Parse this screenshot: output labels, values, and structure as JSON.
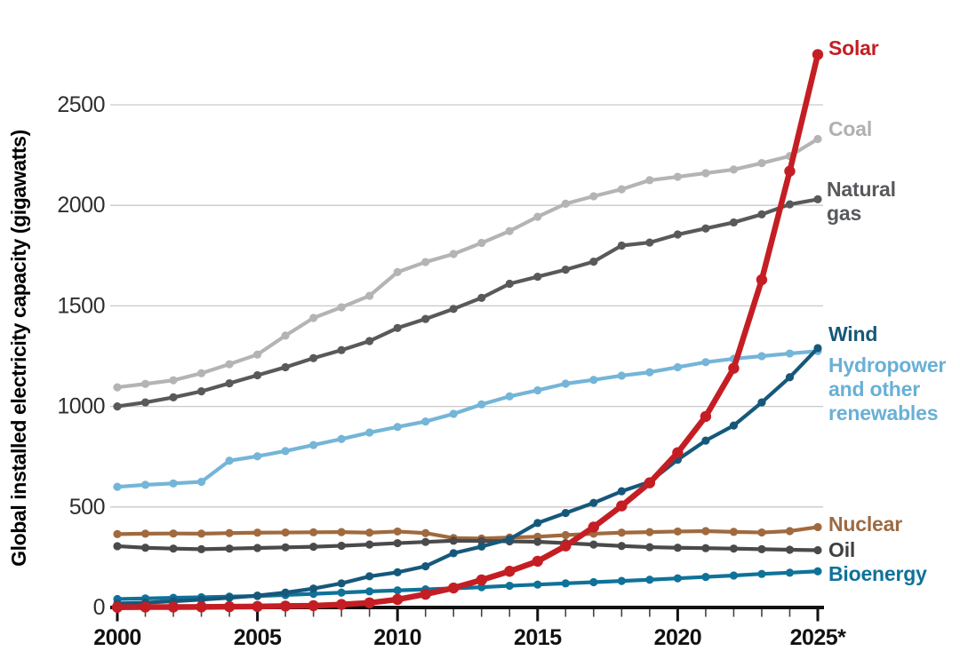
{
  "chart_data": {
    "type": "line",
    "title": "",
    "xlabel": "",
    "ylabel": "Global installed electricity capacity (gigawatts)",
    "x": [
      2000,
      2001,
      2002,
      2003,
      2004,
      2005,
      2006,
      2007,
      2008,
      2009,
      2010,
      2011,
      2012,
      2013,
      2014,
      2015,
      2016,
      2017,
      2018,
      2019,
      2020,
      2021,
      2022,
      2023,
      2024,
      2025
    ],
    "x_ticks": [
      2000,
      2005,
      2010,
      2015,
      2020,
      2025
    ],
    "x_tick_labels": [
      "2000",
      "2005",
      "2010",
      "2015",
      "2020",
      "2025*"
    ],
    "yticks": [
      0,
      500,
      1000,
      1500,
      2000,
      2500
    ],
    "ylim": [
      0,
      2800
    ],
    "grid": "horizontal",
    "legend_position": "right-of-line-ends",
    "axis_color": "#111111",
    "gridline_color": "#c9c9c9",
    "tick_label_color": "#2e2e2e",
    "series": [
      {
        "name": "coal",
        "label": "Coal",
        "color": "#b4b4b4",
        "label_color": "#b0b0b0",
        "label_pos": {
          "x": 932,
          "y": 132
        },
        "values": [
          1095,
          1112,
          1130,
          1165,
          1210,
          1258,
          1352,
          1440,
          1493,
          1550,
          1668,
          1718,
          1758,
          1813,
          1872,
          1943,
          2008,
          2045,
          2080,
          2125,
          2142,
          2160,
          2178,
          2210,
          2245,
          2330
        ]
      },
      {
        "name": "natural-gas",
        "label": "Natural gas",
        "color": "#58595b",
        "label_color": "#57595c",
        "label_pos": {
          "x": 930,
          "y": 200,
          "w": 108
        },
        "values": [
          1000,
          1020,
          1045,
          1075,
          1115,
          1155,
          1195,
          1240,
          1280,
          1325,
          1390,
          1435,
          1485,
          1540,
          1610,
          1645,
          1680,
          1720,
          1800,
          1815,
          1855,
          1885,
          1915,
          1955,
          2005,
          2030
        ]
      },
      {
        "name": "hydropower",
        "label": "Hydropower and other renewables",
        "color": "#74b5d8",
        "label_color": "#69b0d5",
        "label_pos": {
          "x": 932,
          "y": 398,
          "w": 178
        },
        "values": [
          600,
          610,
          617,
          625,
          730,
          752,
          778,
          808,
          838,
          870,
          898,
          925,
          963,
          1010,
          1050,
          1080,
          1113,
          1132,
          1153,
          1170,
          1195,
          1220,
          1237,
          1250,
          1263,
          1275
        ]
      },
      {
        "name": "nuclear",
        "label": "Nuclear",
        "color": "#a06a3e",
        "label_color": "#9d6a42",
        "label_pos": {
          "x": 932,
          "y": 577
        },
        "values": [
          365,
          367,
          368,
          367,
          370,
          372,
          373,
          374,
          375,
          372,
          378,
          370,
          345,
          343,
          348,
          352,
          360,
          367,
          372,
          375,
          378,
          380,
          376,
          373,
          380,
          400
        ]
      },
      {
        "name": "oil",
        "label": "Oil",
        "color": "#4a4a4c",
        "label_color": "#3f4041",
        "label_pos": {
          "x": 932,
          "y": 606
        },
        "values": [
          305,
          297,
          293,
          290,
          293,
          296,
          299,
          302,
          307,
          313,
          320,
          326,
          332,
          331,
          329,
          327,
          320,
          313,
          306,
          300,
          297,
          295,
          293,
          290,
          287,
          285
        ]
      },
      {
        "name": "bioenergy",
        "label": "Bioenergy",
        "color": "#0f7299",
        "label_color": "#0f7299",
        "label_pos": {
          "x": 932,
          "y": 633
        },
        "values": [
          42,
          45,
          48,
          51,
          54,
          57,
          62,
          68,
          74,
          80,
          85,
          90,
          95,
          101,
          108,
          114,
          120,
          126,
          132,
          138,
          145,
          152,
          159,
          167,
          173,
          180
        ]
      },
      {
        "name": "wind",
        "label": "Wind",
        "color": "#16587a",
        "label_color": "#16587a",
        "label_pos": {
          "x": 932,
          "y": 363
        },
        "values": [
          20,
          24,
          31,
          39,
          48,
          59,
          74,
          94,
          120,
          155,
          175,
          205,
          270,
          303,
          340,
          420,
          470,
          520,
          578,
          625,
          735,
          830,
          905,
          1020,
          1145,
          1290
        ]
      },
      {
        "name": "solar",
        "label": "Solar",
        "color": "#c41e24",
        "label_color": "#c41e24",
        "label_pos": {
          "x": 932,
          "y": 41
        },
        "line_width": 6.5,
        "dot_r": 6.2,
        "values": [
          1,
          2,
          2,
          3,
          4,
          5,
          7,
          9,
          15,
          23,
          40,
          66,
          97,
          137,
          180,
          230,
          306,
          400,
          505,
          620,
          770,
          950,
          1190,
          1630,
          2170,
          2750
        ]
      }
    ]
  }
}
